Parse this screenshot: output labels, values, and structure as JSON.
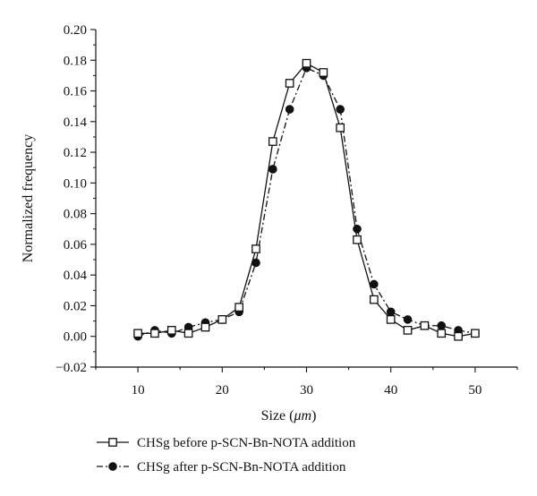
{
  "chart_data": {
    "type": "line",
    "xlabel_prefix": "Size (",
    "xlabel_unit": "μm",
    "xlabel_suffix": ")",
    "ylabel": "Normalized frequency",
    "xlim": [
      5,
      55
    ],
    "ylim": [
      -0.02,
      0.2
    ],
    "x_ticks": [
      10,
      20,
      30,
      40,
      50
    ],
    "y_ticks": [
      -0.02,
      0.0,
      0.02,
      0.04,
      0.06,
      0.08,
      0.1,
      0.12,
      0.14,
      0.16,
      0.18,
      0.2
    ],
    "y_tick_labels": [
      "−0.02",
      "0.00",
      "0.02",
      "0.04",
      "0.06",
      "0.08",
      "0.10",
      "0.12",
      "0.14",
      "0.16",
      "0.18",
      "0.20"
    ],
    "grid": false,
    "legend_position": "bottom",
    "series": [
      {
        "name": "CHSg before p-SCN-Bn-NOTA addition",
        "marker": "open-square",
        "line_style": "solid",
        "color": "#111111",
        "x": [
          10,
          12,
          14,
          16,
          18,
          20,
          22,
          24,
          26,
          28,
          30,
          32,
          34,
          36,
          38,
          40,
          42,
          44,
          46,
          48,
          50
        ],
        "y": [
          0.002,
          0.002,
          0.004,
          0.002,
          0.006,
          0.011,
          0.019,
          0.057,
          0.127,
          0.165,
          0.178,
          0.172,
          0.136,
          0.063,
          0.024,
          0.011,
          0.004,
          0.007,
          0.002,
          0.0,
          0.002
        ]
      },
      {
        "name": "CHSg after p-SCN-Bn-NOTA addition",
        "marker": "filled-circle",
        "line_style": "dash-dot",
        "color": "#111111",
        "x": [
          10,
          12,
          14,
          16,
          18,
          20,
          22,
          24,
          26,
          28,
          30,
          32,
          34,
          36,
          38,
          40,
          42,
          44,
          46,
          48,
          50
        ],
        "y": [
          0.0,
          0.004,
          0.002,
          0.006,
          0.009,
          0.011,
          0.016,
          0.048,
          0.109,
          0.148,
          0.175,
          0.17,
          0.148,
          0.07,
          0.034,
          0.016,
          0.011,
          0.007,
          0.007,
          0.004,
          0.002
        ]
      }
    ]
  }
}
